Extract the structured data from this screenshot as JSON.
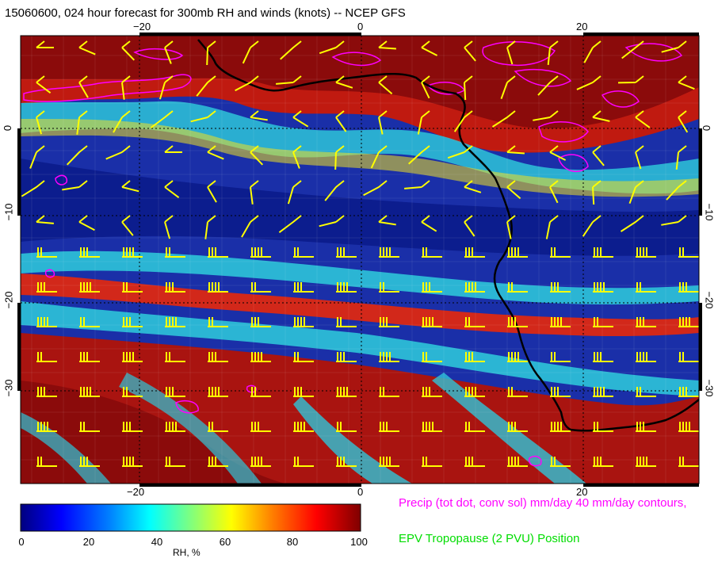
{
  "title": "15060600, 024 hour forecast for 300mb RH and winds (knots) -- NCEP GFS",
  "map": {
    "lon_labels_top": [
      "−20",
      "0",
      "20"
    ],
    "lon_labels_bottom": [
      "−20",
      "0",
      "20"
    ],
    "lat_labels_left": [
      "0",
      "−10",
      "−20",
      "−30"
    ],
    "lat_labels_right": [
      "0",
      "−10",
      "−20",
      "−30"
    ],
    "colors": {
      "low_rh": "#0a1a8a",
      "mid_rh": "#2ec4d8",
      "high_rh": "#8b0b0b",
      "wind_barbs": "#ffff00",
      "precip_contours": "#ff00ff",
      "coastline": "#000000"
    }
  },
  "colorbar": {
    "ticks": [
      "0",
      "20",
      "40",
      "60",
      "80",
      "100"
    ],
    "label": "RH, %",
    "stops": [
      "#00007f",
      "#0000ff",
      "#007fff",
      "#00ffff",
      "#7fff7f",
      "#ffff00",
      "#ff7f00",
      "#ff0000",
      "#7f0000"
    ]
  },
  "legend": {
    "precip": "Precip (tot dot, conv sol) mm/day 40 mm/day contours,",
    "tropopause": "EPV Tropopause (2 PVU) Position"
  }
}
